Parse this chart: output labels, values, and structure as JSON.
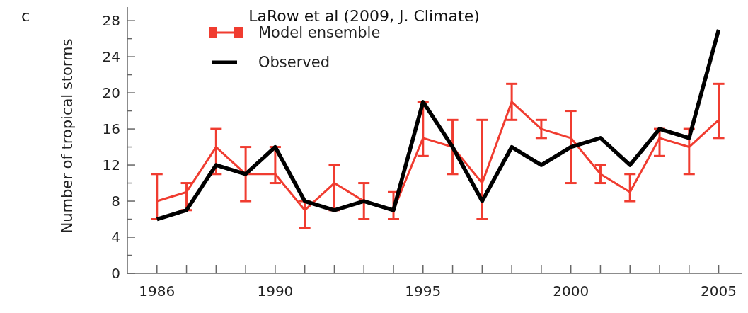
{
  "chart_data": {
    "type": "line",
    "title": "LaRow et al (2009, J. Climate)",
    "ylabel": "Number of tropical storms",
    "annotations": [
      "c"
    ],
    "x": [
      1986,
      1987,
      1988,
      1989,
      1990,
      1991,
      1992,
      1993,
      1994,
      1995,
      1996,
      1997,
      1998,
      1999,
      2000,
      2001,
      2002,
      2003,
      2004,
      2005
    ],
    "series": [
      {
        "name": "Model ensemble",
        "color": "#f03c30",
        "values": [
          8,
          9,
          14,
          11,
          11,
          7,
          10,
          8,
          7,
          15,
          14,
          10,
          19,
          16,
          15,
          11,
          9,
          15,
          14,
          17
        ],
        "errors": [
          [
            6,
            11
          ],
          [
            7,
            10
          ],
          [
            11,
            16
          ],
          [
            8,
            14
          ],
          [
            10,
            14
          ],
          [
            5,
            8
          ],
          [
            7,
            12
          ],
          [
            6,
            10
          ],
          [
            6,
            9
          ],
          [
            13,
            19
          ],
          [
            11,
            17
          ],
          [
            6,
            17
          ],
          [
            17,
            21
          ],
          [
            15,
            17
          ],
          [
            10,
            18
          ],
          [
            10,
            12
          ],
          [
            8,
            11
          ],
          [
            13,
            16
          ],
          [
            11,
            16
          ],
          [
            15,
            21
          ]
        ]
      },
      {
        "name": "Observed",
        "color": "#000000",
        "values": [
          6,
          7,
          12,
          11,
          14,
          8,
          7,
          8,
          7,
          19,
          14,
          8,
          14,
          12,
          14,
          15,
          12,
          16,
          15,
          27
        ]
      }
    ],
    "xlim": [
      1985,
      2005.8
    ],
    "xticks": [
      1986,
      {
        "value": 1987,
        "label": null
      },
      {
        "value": 1988,
        "label": null
      },
      {
        "value": 1989,
        "label": null
      },
      1990,
      {
        "value": 1991,
        "label": null
      },
      {
        "value": 1992,
        "label": null
      },
      {
        "value": 1993,
        "label": null
      },
      {
        "value": 1994,
        "label": null
      },
      1995,
      {
        "value": 1996,
        "label": null
      },
      {
        "value": 1997,
        "label": null
      },
      {
        "value": 1998,
        "label": null
      },
      {
        "value": 1999,
        "label": null
      },
      2000,
      {
        "value": 2001,
        "label": null
      },
      {
        "value": 2002,
        "label": null
      },
      {
        "value": 2003,
        "label": null
      },
      {
        "value": 2004,
        "label": null
      },
      2005
    ],
    "ylim": [
      0,
      29.5
    ],
    "yticks": [
      0,
      {
        "value": 2,
        "label": null
      },
      4,
      {
        "value": 6,
        "label": null
      },
      8,
      {
        "value": 10,
        "label": null
      },
      12,
      {
        "value": 14,
        "label": null
      },
      16,
      {
        "value": 18,
        "label": null
      },
      20,
      {
        "value": 22,
        "label": null
      },
      24,
      {
        "value": 26,
        "label": null
      },
      28
    ],
    "grid": false,
    "legend": "top left",
    "marker": "none",
    "line_style": "solid"
  }
}
